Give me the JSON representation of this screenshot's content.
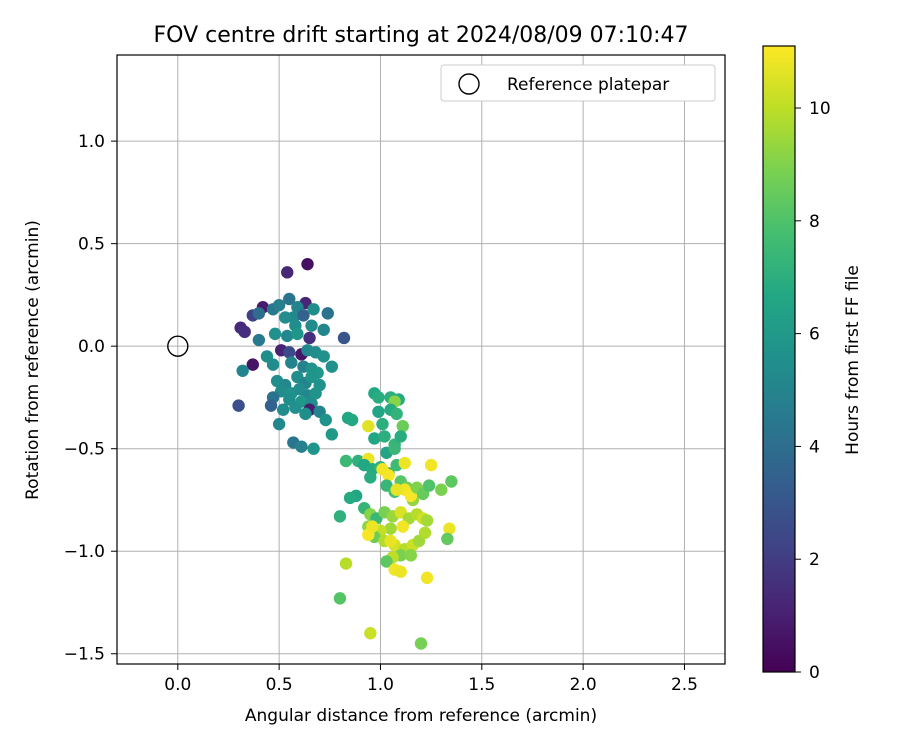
{
  "chart_data": {
    "type": "scatter",
    "title": "FOV centre drift starting at 2024/08/09 07:10:47",
    "xlabel": "Angular distance from reference (arcmin)",
    "ylabel": "Rotation from reference (arcmin)",
    "xlim": [
      -0.3,
      2.7
    ],
    "ylim": [
      -1.55,
      1.42
    ],
    "xticks": [
      0.0,
      0.5,
      1.0,
      1.5,
      2.0,
      2.5
    ],
    "xtick_labels": [
      "0.0",
      "0.5",
      "1.0",
      "1.5",
      "2.0",
      "2.5"
    ],
    "yticks": [
      1.0,
      0.5,
      0.0,
      -0.5,
      -1.0,
      -1.5
    ],
    "ytick_labels": [
      "1.0",
      "0.5",
      "0.0",
      "−0.5",
      "−1.0",
      "−1.5"
    ],
    "grid": true,
    "legend": {
      "placement": "top-right",
      "entries": [
        "Reference platepar"
      ]
    },
    "reference_point": {
      "x": 0.0,
      "y": 0.0,
      "label": "Reference platepar"
    },
    "colorbar": {
      "label": "Hours from first FF file",
      "colormap": "viridis",
      "range": [
        0,
        11.1
      ],
      "ticks": [
        0,
        2,
        4,
        6,
        8,
        10
      ],
      "tick_labels": [
        "0",
        "2",
        "4",
        "6",
        "8",
        "10"
      ]
    },
    "points": [
      [
        0.64,
        0.4,
        0.5
      ],
      [
        0.54,
        0.36,
        1.3
      ],
      [
        0.63,
        0.21,
        1.2
      ],
      [
        0.42,
        0.19,
        0.8
      ],
      [
        0.37,
        0.15,
        2.2
      ],
      [
        0.31,
        0.09,
        1.4
      ],
      [
        0.33,
        0.07,
        1.5
      ],
      [
        0.37,
        -0.09,
        0.6
      ],
      [
        0.4,
        0.03,
        4.5
      ],
      [
        0.3,
        -0.29,
        2.7
      ],
      [
        0.4,
        0.16,
        4.0
      ],
      [
        0.47,
        0.18,
        4.5
      ],
      [
        0.5,
        0.2,
        4.8
      ],
      [
        0.55,
        0.23,
        4.3
      ],
      [
        0.59,
        0.19,
        5.0
      ],
      [
        0.57,
        0.14,
        5.2
      ],
      [
        0.53,
        0.14,
        5.4
      ],
      [
        0.62,
        0.15,
        3.5
      ],
      [
        0.67,
        0.18,
        5.5
      ],
      [
        0.74,
        0.16,
        4.2
      ],
      [
        0.66,
        0.1,
        5.3
      ],
      [
        0.72,
        0.08,
        5.1
      ],
      [
        0.58,
        0.1,
        5.4
      ],
      [
        0.48,
        0.06,
        5.6
      ],
      [
        0.54,
        0.05,
        5.2
      ],
      [
        0.59,
        0.06,
        5.8
      ],
      [
        0.65,
        0.04,
        1.5
      ],
      [
        0.82,
        0.04,
        3.0
      ],
      [
        0.32,
        -0.12,
        5.0
      ],
      [
        0.51,
        -0.02,
        1.1
      ],
      [
        0.55,
        -0.03,
        2.5
      ],
      [
        0.61,
        -0.04,
        0.7
      ],
      [
        0.64,
        -0.02,
        5.2
      ],
      [
        0.68,
        -0.03,
        5.4
      ],
      [
        0.72,
        -0.05,
        5.6
      ],
      [
        0.44,
        -0.05,
        5.5
      ],
      [
        0.47,
        -0.09,
        5.3
      ],
      [
        0.56,
        -0.08,
        5.0
      ],
      [
        0.62,
        -0.1,
        4.8
      ],
      [
        0.66,
        -0.11,
        5.7
      ],
      [
        0.69,
        -0.13,
        5.9
      ],
      [
        0.76,
        -0.1,
        5.6
      ],
      [
        0.49,
        -0.17,
        5.4
      ],
      [
        0.53,
        -0.19,
        5.2
      ],
      [
        0.59,
        -0.15,
        5.5
      ],
      [
        0.63,
        -0.18,
        5.0
      ],
      [
        0.66,
        -0.15,
        5.8
      ],
      [
        0.7,
        -0.19,
        5.6
      ],
      [
        0.51,
        -0.22,
        5.3
      ],
      [
        0.56,
        -0.23,
        5.6
      ],
      [
        0.6,
        -0.21,
        5.4
      ],
      [
        0.64,
        -0.24,
        5.2
      ],
      [
        0.68,
        -0.23,
        5.7
      ],
      [
        0.47,
        -0.25,
        4.2
      ],
      [
        0.55,
        -0.26,
        5.5
      ],
      [
        0.61,
        -0.27,
        5.9
      ],
      [
        0.66,
        -0.28,
        5.4
      ],
      [
        0.46,
        -0.29,
        3.5
      ],
      [
        0.52,
        -0.31,
        5.3
      ],
      [
        0.58,
        -0.3,
        5.6
      ],
      [
        0.65,
        -0.31,
        0.9
      ],
      [
        0.7,
        -0.32,
        5.0
      ],
      [
        0.5,
        -0.38,
        5.2
      ],
      [
        0.63,
        -0.33,
        5.5
      ],
      [
        0.73,
        -0.36,
        5.7
      ],
      [
        0.57,
        -0.47,
        4.3
      ],
      [
        0.61,
        -0.49,
        4.8
      ],
      [
        0.67,
        -0.5,
        5.8
      ],
      [
        0.76,
        -0.43,
        6.0
      ],
      [
        0.97,
        -0.23,
        6.7
      ],
      [
        0.99,
        -0.25,
        6.9
      ],
      [
        1.05,
        -0.25,
        7.0
      ],
      [
        1.09,
        -0.26,
        6.8
      ],
      [
        1.07,
        -0.27,
        9.1
      ],
      [
        0.99,
        -0.32,
        6.5
      ],
      [
        1.05,
        -0.31,
        6.8
      ],
      [
        1.08,
        -0.33,
        7.2
      ],
      [
        1.11,
        -0.39,
        8.6
      ],
      [
        1.01,
        -0.38,
        7.0
      ],
      [
        0.94,
        -0.39,
        10.6
      ],
      [
        0.97,
        -0.45,
        6.6
      ],
      [
        1.02,
        -0.44,
        7.0
      ],
      [
        1.07,
        -0.48,
        7.3
      ],
      [
        1.1,
        -0.44,
        6.9
      ],
      [
        1.03,
        -0.52,
        6.5
      ],
      [
        1.07,
        -0.5,
        7.4
      ],
      [
        0.84,
        -0.35,
        6.6
      ],
      [
        0.86,
        -0.36,
        6.7
      ],
      [
        0.83,
        -0.56,
        7.5
      ],
      [
        0.89,
        -0.56,
        7.1
      ],
      [
        0.94,
        -0.55,
        10.8
      ],
      [
        0.92,
        -0.58,
        6.6
      ],
      [
        0.96,
        -0.6,
        6.8
      ],
      [
        1.0,
        -0.59,
        7.2
      ],
      [
        1.04,
        -0.62,
        7.1
      ],
      [
        1.08,
        -0.58,
        7.6
      ],
      [
        1.12,
        -0.57,
        10.8
      ],
      [
        1.01,
        -0.6,
        10.9
      ],
      [
        1.04,
        -0.63,
        11.0
      ],
      [
        0.95,
        -0.64,
        6.9
      ],
      [
        1.03,
        -0.68,
        7.4
      ],
      [
        1.07,
        -0.71,
        7.8
      ],
      [
        1.1,
        -0.66,
        8.2
      ],
      [
        1.13,
        -0.69,
        8.7
      ],
      [
        1.16,
        -0.75,
        9.3
      ],
      [
        1.12,
        -0.7,
        10.9
      ],
      [
        1.08,
        -0.7,
        10.7
      ],
      [
        1.15,
        -0.73,
        11.0
      ],
      [
        1.18,
        -0.69,
        9.0
      ],
      [
        1.21,
        -0.72,
        8.5
      ],
      [
        1.24,
        -0.68,
        8.0
      ],
      [
        1.3,
        -0.7,
        8.9
      ],
      [
        1.35,
        -0.66,
        8.3
      ],
      [
        1.25,
        -0.58,
        10.9
      ],
      [
        0.88,
        -0.73,
        6.6
      ],
      [
        0.85,
        -0.74,
        6.8
      ],
      [
        0.92,
        -0.79,
        7.3
      ],
      [
        0.8,
        -0.83,
        7.1
      ],
      [
        0.95,
        -0.82,
        9.1
      ],
      [
        0.98,
        -0.84,
        7.5
      ],
      [
        1.02,
        -0.81,
        8.8
      ],
      [
        1.06,
        -0.83,
        9.4
      ],
      [
        1.1,
        -0.81,
        10.5
      ],
      [
        1.14,
        -0.84,
        9.6
      ],
      [
        1.18,
        -0.82,
        9.9
      ],
      [
        1.21,
        -0.84,
        10.3
      ],
      [
        1.11,
        -0.88,
        10.9
      ],
      [
        1.05,
        -0.89,
        9.5
      ],
      [
        1.0,
        -0.9,
        10.1
      ],
      [
        0.94,
        -0.88,
        9.2
      ],
      [
        0.97,
        -0.93,
        8.6
      ],
      [
        1.02,
        -0.95,
        9.8
      ],
      [
        1.07,
        -0.97,
        10.4
      ],
      [
        1.12,
        -0.99,
        9.9
      ],
      [
        1.16,
        -0.97,
        10.2
      ],
      [
        1.1,
        -1.02,
        8.9
      ],
      [
        1.15,
        -1.02,
        9.1
      ],
      [
        1.19,
        -0.95,
        9.5
      ],
      [
        1.22,
        -0.91,
        9.8
      ],
      [
        1.06,
        -1.03,
        10.0
      ],
      [
        1.03,
        -1.05,
        8.3
      ],
      [
        1.07,
        -1.09,
        10.9
      ],
      [
        1.1,
        -1.1,
        10.8
      ],
      [
        0.94,
        -0.92,
        11.0
      ],
      [
        0.96,
        -0.88,
        10.8
      ],
      [
        1.05,
        -0.95,
        10.7
      ],
      [
        1.34,
        -0.89,
        10.8
      ],
      [
        1.33,
        -0.94,
        8.4
      ],
      [
        1.23,
        -0.85,
        9.6
      ],
      [
        0.83,
        -1.06,
        9.9
      ],
      [
        1.23,
        -1.13,
        10.9
      ],
      [
        0.8,
        -1.23,
        8.1
      ],
      [
        0.95,
        -1.4,
        10.2
      ],
      [
        1.2,
        -1.45,
        8.8
      ]
    ]
  }
}
